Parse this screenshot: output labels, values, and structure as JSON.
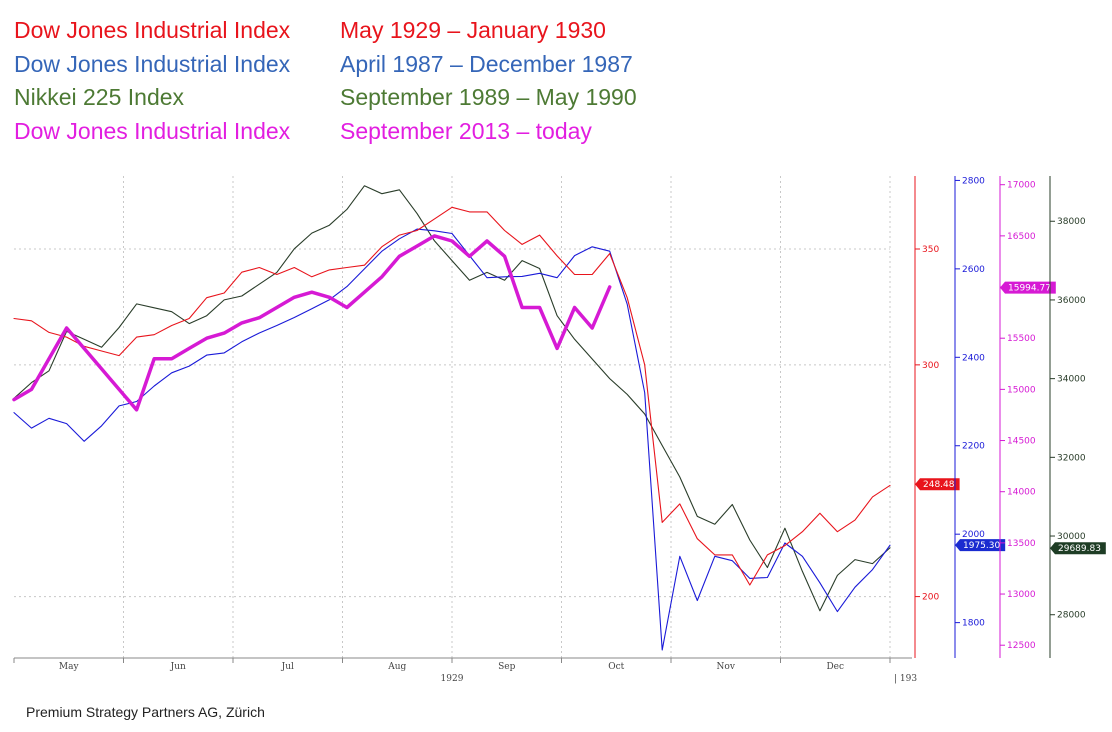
{
  "legend": [
    {
      "index": "Dow Jones Industrial Index",
      "period": "May 1929 – January 1930",
      "color": "#e8141c"
    },
    {
      "index": "Dow Jones Industrial Index",
      "period": "April 1987 – December 1987",
      "color": "#3566b8"
    },
    {
      "index": "Nikkei 225 Index",
      "period": "September 1989 – May 1990",
      "color": "#4d7a34"
    },
    {
      "index": "Dow Jones Industrial Index",
      "period": "September 2013 – today",
      "color": "#e21ee0"
    }
  ],
  "footer": "Premium Strategy Partners AG, Zürich",
  "chart_data": {
    "type": "line",
    "x_axis": {
      "months": [
        "May",
        "Jun",
        "Jul",
        "Aug",
        "Sep",
        "Oct",
        "Nov",
        "Dec"
      ],
      "year_label": "1929",
      "next_label": "193",
      "domain": [
        0,
        100
      ]
    },
    "axes": [
      {
        "id": "dj1929",
        "color": "#e8141c",
        "range": [
          173.5,
          381.5
        ],
        "ticks": [
          200,
          300,
          350
        ],
        "last_label": "248.48",
        "last_value": 248.48
      },
      {
        "id": "dj1987",
        "color": "#1a1ad8",
        "range": [
          1720,
          2810
        ],
        "ticks": [
          1800,
          2000,
          2200,
          2400,
          2600,
          2800
        ],
        "last_label": "1975.30",
        "last_value": 1975.3
      },
      {
        "id": "dj2013",
        "color": "#d61ad4",
        "range": [
          12375,
          17085
        ],
        "ticks": [
          12500,
          13000,
          13500,
          14000,
          14500,
          15000,
          15500,
          16000,
          16500,
          17000
        ],
        "last_label": "15994.77",
        "last_value": 15994.77
      },
      {
        "id": "nikkei",
        "color": "#2a3d2a",
        "range": [
          26900,
          39150
        ],
        "ticks": [
          28000,
          30000,
          32000,
          34000,
          36000,
          38000
        ],
        "last_label": "29689.83",
        "last_value": 29689.83
      }
    ],
    "series": [
      {
        "name": "Dow Jones Industrial Index May 1929 – January 1930",
        "axis": "dj1929",
        "color": "#e8141c",
        "x": [
          0,
          2,
          4,
          6,
          8,
          10,
          12,
          14,
          16,
          18,
          20,
          22,
          24,
          26,
          28,
          30,
          32,
          34,
          36,
          38,
          40,
          42,
          44,
          46,
          48,
          50,
          52,
          54,
          56,
          58,
          60,
          62,
          64,
          66,
          68,
          70,
          72,
          74,
          76,
          78,
          80,
          82,
          84,
          86,
          88,
          90,
          92,
          94,
          96,
          98,
          100
        ],
        "y": [
          320,
          319,
          314,
          312,
          308,
          306,
          304,
          312,
          313,
          317,
          320,
          329,
          331,
          340,
          342,
          339,
          342,
          338,
          341,
          342,
          343,
          351,
          356,
          358,
          363,
          368,
          366,
          366,
          358,
          352,
          356,
          347,
          339,
          339,
          348,
          329,
          300,
          232,
          240,
          225,
          218,
          218,
          205,
          218,
          222,
          228,
          236,
          228,
          233,
          243,
          248
        ]
      },
      {
        "name": "Dow Jones Industrial Index April 1987 – December 1987",
        "axis": "dj1987",
        "color": "#1a1ad8",
        "x": [
          0,
          2,
          4,
          6,
          8,
          10,
          12,
          14,
          16,
          18,
          20,
          22,
          24,
          26,
          28,
          30,
          32,
          34,
          36,
          38,
          40,
          42,
          44,
          46,
          48,
          50,
          52,
          54,
          56,
          58,
          60,
          62,
          64,
          66,
          68,
          70,
          72,
          74,
          76,
          78,
          80,
          82,
          84,
          86,
          88,
          90,
          92,
          94,
          96,
          98,
          100
        ],
        "y": [
          2275,
          2240,
          2262,
          2250,
          2210,
          2245,
          2290,
          2300,
          2335,
          2365,
          2380,
          2405,
          2410,
          2435,
          2455,
          2472,
          2490,
          2510,
          2530,
          2560,
          2600,
          2640,
          2668,
          2690,
          2686,
          2680,
          2630,
          2580,
          2582,
          2583,
          2590,
          2580,
          2630,
          2650,
          2640,
          2520,
          2320,
          1738,
          1950,
          1850,
          1950,
          1940,
          1900,
          1902,
          1980,
          1950,
          1890,
          1825,
          1880,
          1920,
          1975
        ]
      },
      {
        "name": "Dow Jones Industrial Index September 2013 – today",
        "axis": "dj2013",
        "color": "#d61ad4",
        "x": [
          0,
          2,
          4,
          6,
          8,
          10,
          12,
          14,
          16,
          18,
          20,
          22,
          24,
          26,
          28,
          30,
          32,
          34,
          36,
          38,
          40,
          42,
          44,
          46,
          48,
          50,
          52,
          54,
          56,
          58,
          60,
          62,
          64,
          66,
          68
        ],
        "y": [
          14900,
          15000,
          15300,
          15600,
          15400,
          15200,
          15000,
          14800,
          15300,
          15300,
          15400,
          15500,
          15550,
          15650,
          15700,
          15800,
          15900,
          15950,
          15900,
          15800,
          15950,
          16100,
          16300,
          16400,
          16500,
          16450,
          16300,
          16450,
          16300,
          15800,
          15800,
          15400,
          15800,
          15600,
          16000
        ]
      },
      {
        "name": "Nikkei 225 Index September 1989 – May 1990",
        "axis": "nikkei",
        "color": "#2a3d2a",
        "x": [
          0,
          2,
          4,
          6,
          8,
          10,
          12,
          14,
          16,
          18,
          20,
          22,
          24,
          26,
          28,
          30,
          32,
          34,
          36,
          38,
          40,
          42,
          44,
          46,
          48,
          50,
          52,
          54,
          56,
          58,
          60,
          62,
          64,
          66,
          68,
          70,
          72,
          74,
          76,
          78,
          80,
          82,
          84,
          86,
          88,
          90,
          92,
          94,
          96,
          98,
          100
        ],
        "y": [
          33500,
          33900,
          34200,
          35200,
          35000,
          34800,
          35300,
          35900,
          35800,
          35700,
          35400,
          35600,
          36000,
          36100,
          36400,
          36700,
          37300,
          37700,
          37900,
          38300,
          38900,
          38700,
          38800,
          38200,
          37500,
          37000,
          36500,
          36700,
          36500,
          37000,
          36800,
          35600,
          35000,
          34500,
          34000,
          33600,
          33100,
          32300,
          31500,
          30500,
          30300,
          30800,
          29900,
          29200,
          30200,
          29100,
          28100,
          29000,
          29400,
          29300,
          29700
        ]
      }
    ]
  }
}
